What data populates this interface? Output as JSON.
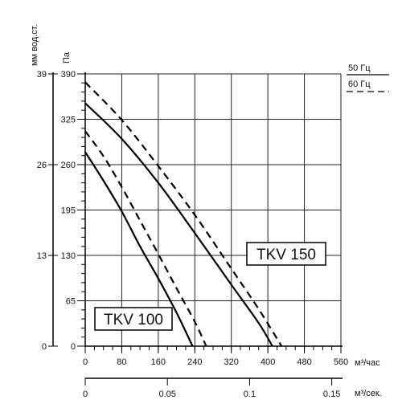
{
  "chart_data": {
    "type": "line",
    "unit_labels": {
      "pa": "Па",
      "mm": "мм вод.ст.",
      "m3h": "м³/час",
      "m3s": "м³/сек."
    },
    "x_axis": {
      "unit": "м³/час",
      "range": [
        0,
        560
      ],
      "ticks": [
        "0",
        "80",
        "160",
        "240",
        "320",
        "400",
        "480",
        "560"
      ]
    },
    "x2_axis": {
      "unit": "м³/сек.",
      "range": [
        0,
        0.15556
      ],
      "ticks": [
        "0",
        "0.05",
        "0.1",
        "0.15"
      ]
    },
    "y_axis": {
      "unit": "Па",
      "range": [
        0,
        390
      ],
      "ticks": [
        "0",
        "65",
        "130",
        "195",
        "260",
        "325",
        "390"
      ]
    },
    "y2_axis": {
      "unit": "мм вод.ст.",
      "range": [
        0,
        39
      ],
      "ticks": [
        "0",
        "13",
        "26",
        "39"
      ]
    },
    "grid": true,
    "legend": [
      {
        "label": "50 Гц",
        "style": "solid"
      },
      {
        "label": "60 Гц",
        "style": "dashed"
      }
    ],
    "model_labels": [
      "TKV 100",
      "TKV 150"
    ],
    "series": [
      {
        "name": "TKV 100",
        "frequency": "50 Гц",
        "style": "solid",
        "points": [
          [
            0,
            278
          ],
          [
            40,
            237
          ],
          [
            80,
            193
          ],
          [
            120,
            143
          ],
          [
            160,
            97
          ],
          [
            200,
            48
          ],
          [
            235,
            0
          ]
        ]
      },
      {
        "name": "TKV 100",
        "frequency": "60 Гц",
        "style": "dashed",
        "points": [
          [
            0,
            308
          ],
          [
            40,
            272
          ],
          [
            80,
            228
          ],
          [
            120,
            180
          ],
          [
            160,
            132
          ],
          [
            200,
            83
          ],
          [
            240,
            35
          ],
          [
            265,
            0
          ]
        ]
      },
      {
        "name": "TKV 150",
        "frequency": "50 Гц",
        "style": "solid",
        "points": [
          [
            0,
            348
          ],
          [
            80,
            297
          ],
          [
            160,
            234
          ],
          [
            240,
            162
          ],
          [
            320,
            88
          ],
          [
            380,
            33
          ],
          [
            410,
            0
          ]
        ]
      },
      {
        "name": "TKV 150",
        "frequency": "60 Гц",
        "style": "dashed",
        "points": [
          [
            0,
            378
          ],
          [
            80,
            324
          ],
          [
            160,
            258
          ],
          [
            240,
            188
          ],
          [
            320,
            111
          ],
          [
            380,
            53
          ],
          [
            430,
            0
          ]
        ]
      }
    ]
  }
}
